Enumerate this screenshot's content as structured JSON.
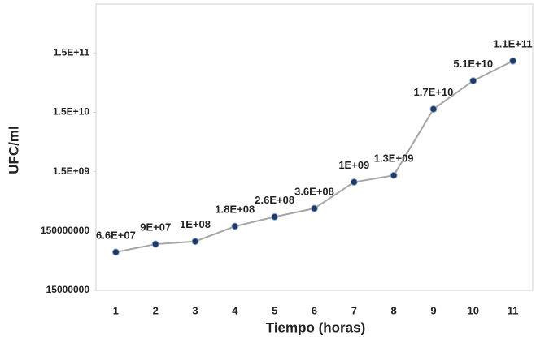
{
  "chart_data": {
    "type": "line",
    "x_label": "Tiempo (horas)",
    "y_label": "UFC/ml",
    "categories": [
      "1",
      "2",
      "3",
      "4",
      "5",
      "6",
      "7",
      "8",
      "9",
      "10",
      "11"
    ],
    "series": [
      {
        "color": "#1f3864",
        "line_color": "#a6a6a6",
        "values": [
          66000000,
          90000000,
          100000000,
          180000000,
          260000000,
          360000000,
          1000000000,
          1300000000,
          17000000000,
          51000000000,
          110000000000
        ],
        "value_labels": [
          "6.6E+07",
          "9E+07",
          "1E+08",
          "1.8E+08",
          "2.6E+08",
          "3.6E+08",
          "1E+09",
          "1.3E+09",
          "1.7E+10",
          "5.1E+10",
          "1.1E+11"
        ]
      }
    ],
    "yscale": "log",
    "ylim": [
      15000000,
      1000000000000
    ],
    "yticks": [
      15000000,
      150000000,
      {
        "value": 1500000000,
        "label": "1.5E+09"
      },
      {
        "value": 15000000000,
        "label": "1.5E+10"
      },
      {
        "value": 150000000000,
        "label": "1.5E+11"
      }
    ],
    "grid": false
  }
}
